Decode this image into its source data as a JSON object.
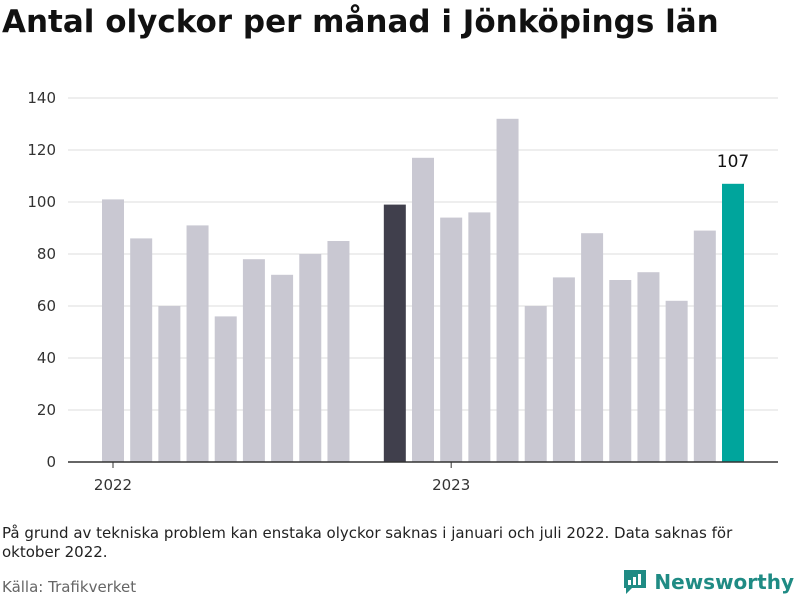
{
  "title": "Antal olyckor per månad i Jönköpings län",
  "footnote": "På grund av tekniska problem kan enstaka olyckor saknas i januari och juli 2022. Data saknas för oktober 2022.",
  "source": "Källa: Trafikverket",
  "brand": "Newsworthy",
  "colors": {
    "default": "#c9c8d2",
    "highlight_dark": "#403f4c",
    "highlight_accent": "#00a59c",
    "axis": "#333333",
    "grid": "#dddddd"
  },
  "chart_data": {
    "type": "bar",
    "title": "Antal olyckor per månad i Jönköpings län",
    "ylim": [
      0,
      140
    ],
    "yticks": [
      0,
      20,
      40,
      60,
      80,
      100,
      120,
      140
    ],
    "xtick_labels": [
      "2022",
      "2023"
    ],
    "grid": true,
    "bars": [
      {
        "label": "2022-01",
        "value": 101,
        "color": "default"
      },
      {
        "label": "2022-02",
        "value": 86,
        "color": "default"
      },
      {
        "label": "2022-03",
        "value": 60,
        "color": "default"
      },
      {
        "label": "2022-04",
        "value": 91,
        "color": "default"
      },
      {
        "label": "2022-05",
        "value": 56,
        "color": "default"
      },
      {
        "label": "2022-06",
        "value": 78,
        "color": "default"
      },
      {
        "label": "2022-07",
        "value": 72,
        "color": "default"
      },
      {
        "label": "2022-08",
        "value": 80,
        "color": "default"
      },
      {
        "label": "2022-09",
        "value": 85,
        "color": "default"
      },
      {
        "label": "2022-10",
        "value": null,
        "color": "default"
      },
      {
        "label": "2022-11",
        "value": 99,
        "color": "highlight_dark"
      },
      {
        "label": "2022-12",
        "value": 117,
        "color": "default"
      },
      {
        "label": "2023-01",
        "value": 94,
        "color": "default"
      },
      {
        "label": "2023-02",
        "value": 96,
        "color": "default"
      },
      {
        "label": "2023-03",
        "value": 132,
        "color": "default"
      },
      {
        "label": "2023-04",
        "value": 60,
        "color": "default"
      },
      {
        "label": "2023-05",
        "value": 71,
        "color": "default"
      },
      {
        "label": "2023-06",
        "value": 88,
        "color": "default"
      },
      {
        "label": "2023-07",
        "value": 70,
        "color": "default"
      },
      {
        "label": "2023-08",
        "value": 73,
        "color": "default"
      },
      {
        "label": "2023-09",
        "value": 62,
        "color": "default"
      },
      {
        "label": "2023-10",
        "value": 89,
        "color": "default"
      },
      {
        "label": "2023-11",
        "value": 107,
        "color": "highlight_accent",
        "data_label": "107"
      }
    ]
  }
}
